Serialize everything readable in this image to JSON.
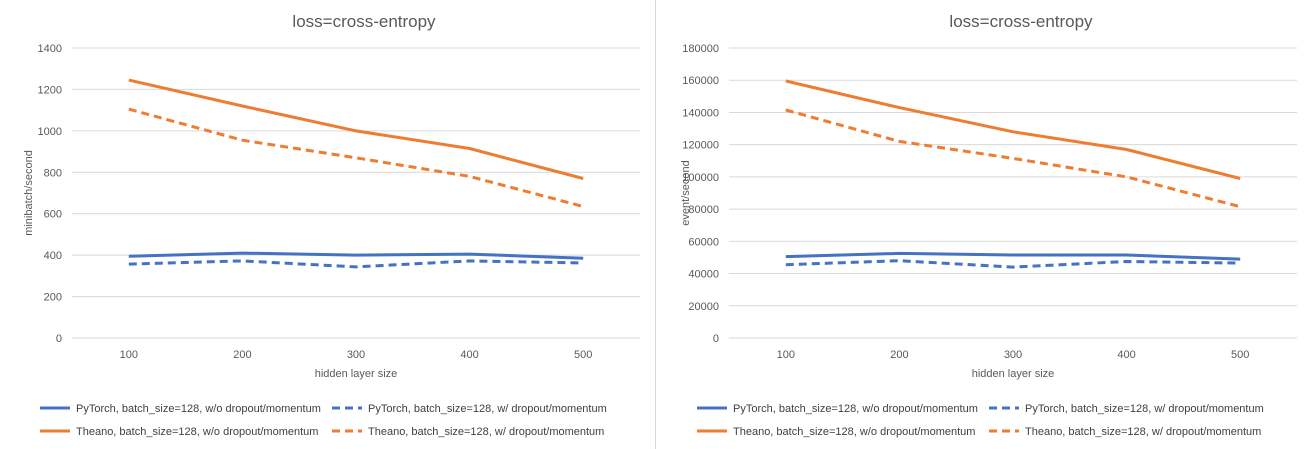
{
  "charts": [
    {
      "type": "line",
      "title": "loss=cross-entropy",
      "xlabel": "hidden layer size",
      "ylabel": "minibatch/second",
      "x": [
        100,
        200,
        300,
        400,
        500
      ],
      "ylim": [
        0,
        1400
      ],
      "yticks": [
        0,
        200,
        400,
        600,
        800,
        1000,
        1200,
        1400
      ],
      "grid": true,
      "legend_position": "bottom",
      "series": [
        {
          "name": "PyTorch, batch_size=128, w/o dropout/momentum",
          "color": "#4472C4",
          "dash": "solid",
          "values": [
            395,
            410,
            400,
            405,
            385
          ]
        },
        {
          "name": "PyTorch, batch_size=128, w/ dropout/momentum",
          "color": "#4472C4",
          "dash": "dashed",
          "values": [
            357,
            372,
            343,
            372,
            362
          ]
        },
        {
          "name": "Theano, batch_size=128, w/o dropout/momentum",
          "color": "#ED7D31",
          "dash": "solid",
          "values": [
            1245,
            1120,
            1000,
            915,
            770
          ]
        },
        {
          "name": "Theano, batch_size=128, w/ dropout/momentum",
          "color": "#ED7D31",
          "dash": "dashed",
          "values": [
            1105,
            955,
            870,
            780,
            635
          ]
        }
      ]
    },
    {
      "type": "line",
      "title": "loss=cross-entropy",
      "xlabel": "hidden layer size",
      "ylabel": "event/second",
      "x": [
        100,
        200,
        300,
        400,
        500
      ],
      "ylim": [
        0,
        180000
      ],
      "yticks": [
        0,
        20000,
        40000,
        60000,
        80000,
        100000,
        120000,
        140000,
        160000,
        180000
      ],
      "grid": true,
      "legend_position": "bottom",
      "series": [
        {
          "name": "PyTorch, batch_size=128, w/o dropout/momentum",
          "color": "#4472C4",
          "dash": "solid",
          "values": [
            50500,
            52500,
            51500,
            51500,
            49000
          ]
        },
        {
          "name": "PyTorch, batch_size=128, w/ dropout/momentum",
          "color": "#4472C4",
          "dash": "dashed",
          "values": [
            45500,
            48000,
            44000,
            47500,
            46500
          ]
        },
        {
          "name": "Theano, batch_size=128, w/o dropout/momentum",
          "color": "#ED7D31",
          "dash": "solid",
          "values": [
            159500,
            143000,
            128000,
            117000,
            99000
          ]
        },
        {
          "name": "Theano, batch_size=128, w/ dropout/momentum",
          "color": "#ED7D31",
          "dash": "dashed",
          "values": [
            141500,
            122000,
            111500,
            100000,
            81500
          ]
        }
      ]
    }
  ]
}
